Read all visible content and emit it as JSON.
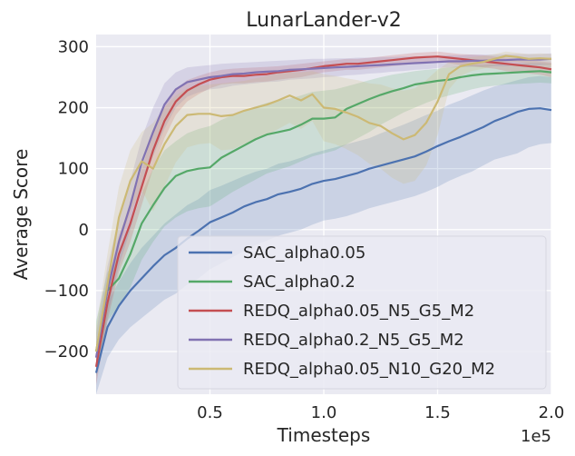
{
  "chart_data": {
    "type": "line",
    "title": "LunarLander-v2",
    "xlabel": "Timesteps",
    "ylabel": "Average Score",
    "x_multiplier_label": "1e5",
    "xlim": [
      0.0,
      2.0
    ],
    "ylim": [
      -270,
      320
    ],
    "x_ticks": [
      0.5,
      1.0,
      1.5,
      2.0
    ],
    "x_tick_labels": [
      "0.5",
      "1.0",
      "1.5",
      "2.0"
    ],
    "y_ticks": [
      -200,
      -100,
      0,
      100,
      200,
      300
    ],
    "y_tick_labels": [
      "−200",
      "−100",
      "0",
      "100",
      "200",
      "300"
    ],
    "grid": true,
    "legend_position": "lower-center",
    "x": [
      0.0,
      0.05,
      0.1,
      0.15,
      0.2,
      0.25,
      0.3,
      0.35,
      0.4,
      0.45,
      0.5,
      0.55,
      0.6,
      0.65,
      0.7,
      0.75,
      0.8,
      0.85,
      0.9,
      0.95,
      1.0,
      1.05,
      1.1,
      1.15,
      1.2,
      1.25,
      1.3,
      1.35,
      1.4,
      1.45,
      1.5,
      1.55,
      1.6,
      1.65,
      1.7,
      1.75,
      1.8,
      1.85,
      1.9,
      1.95,
      2.0
    ],
    "series": [
      {
        "name": "SAC_alpha0.05",
        "color": "#4c72b0",
        "values": [
          -235,
          -160,
          -125,
          -100,
          -80,
          -60,
          -42,
          -30,
          -15,
          -2,
          12,
          20,
          28,
          38,
          45,
          50,
          58,
          62,
          67,
          75,
          80,
          83,
          88,
          93,
          100,
          105,
          110,
          115,
          120,
          128,
          137,
          145,
          152,
          160,
          168,
          178,
          185,
          193,
          198,
          199,
          196
        ],
        "upper": [
          -205,
          -120,
          -85,
          -55,
          -30,
          -10,
          10,
          25,
          40,
          50,
          65,
          72,
          80,
          88,
          95,
          100,
          108,
          112,
          118,
          125,
          130,
          135,
          140,
          145,
          150,
          158,
          165,
          172,
          180,
          188,
          195,
          205,
          212,
          220,
          228,
          235,
          240,
          245,
          250,
          252,
          250
        ],
        "lower": [
          -270,
          -210,
          -180,
          -160,
          -145,
          -130,
          -115,
          -105,
          -90,
          -80,
          -65,
          -55,
          -45,
          -35,
          -25,
          -18,
          -10,
          -5,
          0,
          8,
          15,
          18,
          22,
          28,
          35,
          40,
          45,
          50,
          55,
          62,
          70,
          80,
          88,
          95,
          105,
          115,
          120,
          125,
          135,
          140,
          142
        ]
      },
      {
        "name": "SAC_alpha0.2",
        "color": "#55a868",
        "values": [
          -200,
          -100,
          -80,
          -40,
          10,
          40,
          68,
          88,
          96,
          100,
          102,
          118,
          128,
          138,
          148,
          156,
          160,
          164,
          172,
          182,
          182,
          184,
          198,
          206,
          214,
          221,
          227,
          232,
          238,
          241,
          244,
          246,
          250,
          253,
          255,
          256,
          257,
          258,
          259,
          260,
          258
        ],
        "upper": [
          -150,
          -70,
          -40,
          5,
          60,
          100,
          130,
          145,
          158,
          165,
          170,
          180,
          188,
          195,
          202,
          208,
          212,
          215,
          220,
          226,
          228,
          230,
          235,
          240,
          245,
          250,
          254,
          257,
          260,
          262,
          264,
          266,
          268,
          270,
          270,
          271,
          272,
          272,
          273,
          273,
          272
        ],
        "lower": [
          -240,
          -150,
          -125,
          -95,
          -50,
          -20,
          5,
          20,
          30,
          35,
          38,
          50,
          62,
          72,
          82,
          92,
          98,
          104,
          112,
          120,
          125,
          130,
          140,
          150,
          160,
          172,
          182,
          192,
          200,
          208,
          215,
          220,
          225,
          230,
          234,
          236,
          238,
          239,
          240,
          241,
          240
        ]
      },
      {
        "name": "REDQ_alpha0.05_N5_G5_M2",
        "color": "#c44e52",
        "values": [
          -225,
          -120,
          -40,
          10,
          70,
          130,
          178,
          210,
          228,
          238,
          246,
          250,
          252,
          252,
          254,
          255,
          258,
          260,
          262,
          265,
          268,
          270,
          272,
          272,
          274,
          276,
          278,
          280,
          282,
          283,
          284,
          282,
          280,
          278,
          276,
          274,
          272,
          270,
          268,
          266,
          263
        ],
        "upper": [
          -190,
          -90,
          -10,
          40,
          100,
          160,
          205,
          230,
          245,
          252,
          258,
          262,
          264,
          265,
          266,
          267,
          268,
          270,
          272,
          274,
          276,
          278,
          280,
          280,
          282,
          284,
          286,
          288,
          290,
          291,
          292,
          290,
          288,
          287,
          286,
          284,
          282,
          280,
          278,
          276,
          274
        ],
        "lower": [
          -255,
          -150,
          -70,
          -20,
          40,
          100,
          150,
          188,
          210,
          222,
          232,
          238,
          240,
          240,
          242,
          243,
          246,
          248,
          250,
          254,
          258,
          260,
          262,
          262,
          264,
          266,
          268,
          270,
          272,
          274,
          275,
          273,
          270,
          268,
          266,
          264,
          260,
          258,
          256,
          254,
          250
        ]
      },
      {
        "name": "REDQ_alpha0.2_N5_G5_M2",
        "color": "#8172b2",
        "values": [
          -210,
          -100,
          -20,
          40,
          110,
          160,
          205,
          230,
          242,
          246,
          250,
          252,
          255,
          256,
          258,
          259,
          260,
          262,
          263,
          264,
          265,
          266,
          267,
          268,
          269,
          270,
          271,
          272,
          273,
          274,
          275,
          276,
          276,
          277,
          277,
          278,
          278,
          279,
          279,
          279,
          280
        ],
        "upper": [
          -170,
          -60,
          20,
          80,
          150,
          200,
          240,
          258,
          266,
          268,
          270,
          272,
          273,
          274,
          275,
          276,
          277,
          278,
          279,
          280,
          280,
          281,
          281,
          282,
          282,
          283,
          283,
          284,
          284,
          285,
          285,
          286,
          286,
          287,
          287,
          287,
          288,
          288,
          288,
          288,
          289
        ],
        "lower": [
          -240,
          -140,
          -60,
          0,
          70,
          120,
          165,
          200,
          218,
          225,
          230,
          232,
          236,
          238,
          240,
          242,
          243,
          246,
          247,
          248,
          250,
          251,
          253,
          254,
          256,
          257,
          259,
          260,
          262,
          263,
          265,
          266,
          266,
          267,
          267,
          268,
          268,
          270,
          270,
          270,
          271
        ]
      },
      {
        "name": "REDQ_alpha0.05_N10_G20_M2",
        "color": "#ccb974",
        "values": [
          -200,
          -90,
          20,
          80,
          112,
          100,
          140,
          170,
          188,
          190,
          190,
          186,
          188,
          195,
          200,
          205,
          212,
          220,
          212,
          222,
          200,
          198,
          192,
          185,
          175,
          170,
          158,
          148,
          155,
          175,
          210,
          255,
          268,
          272,
          275,
          280,
          285,
          283,
          280,
          281,
          280
        ],
        "upper": [
          -160,
          -40,
          70,
          130,
          160,
          175,
          200,
          220,
          232,
          236,
          238,
          240,
          242,
          244,
          248,
          252,
          256,
          258,
          258,
          260,
          255,
          252,
          248,
          245,
          240,
          238,
          232,
          228,
          232,
          245,
          262,
          275,
          280,
          283,
          285,
          288,
          292,
          290,
          288,
          289,
          288
        ],
        "lower": [
          -240,
          -140,
          -30,
          30,
          65,
          30,
          70,
          110,
          135,
          140,
          142,
          130,
          132,
          140,
          150,
          155,
          165,
          175,
          165,
          178,
          145,
          140,
          132,
          122,
          108,
          100,
          85,
          75,
          80,
          105,
          155,
          230,
          252,
          260,
          264,
          270,
          276,
          275,
          272,
          272,
          270
        ]
      }
    ]
  }
}
